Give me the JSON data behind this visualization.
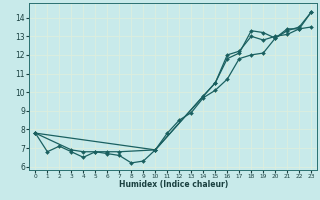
{
  "xlabel": "Humidex (Indice chaleur)",
  "xlim": [
    -0.5,
    23.5
  ],
  "ylim": [
    5.8,
    14.8
  ],
  "yticks": [
    6,
    7,
    8,
    9,
    10,
    11,
    12,
    13,
    14
  ],
  "xticks": [
    0,
    1,
    2,
    3,
    4,
    5,
    6,
    7,
    8,
    9,
    10,
    11,
    12,
    13,
    14,
    15,
    16,
    17,
    18,
    19,
    20,
    21,
    22,
    23
  ],
  "bg_color": "#c8eaea",
  "grid_color": "#e8f8f8",
  "line_color": "#1a6060",
  "series1": [
    [
      0,
      7.8
    ],
    [
      1,
      6.8
    ],
    [
      2,
      7.1
    ],
    [
      3,
      6.8
    ],
    [
      4,
      6.5
    ],
    [
      5,
      6.8
    ],
    [
      6,
      6.7
    ],
    [
      7,
      6.6
    ],
    [
      8,
      6.2
    ],
    [
      9,
      6.3
    ],
    [
      10,
      6.9
    ],
    [
      11,
      7.8
    ],
    [
      12,
      8.5
    ],
    [
      13,
      8.9
    ],
    [
      14,
      9.7
    ],
    [
      15,
      10.1
    ],
    [
      16,
      10.7
    ],
    [
      17,
      11.8
    ],
    [
      18,
      12.0
    ],
    [
      19,
      12.1
    ],
    [
      20,
      12.9
    ],
    [
      21,
      13.3
    ],
    [
      22,
      13.5
    ],
    [
      23,
      14.3
    ]
  ],
  "series2": [
    [
      0,
      7.8
    ],
    [
      3,
      6.9
    ],
    [
      4,
      6.8
    ],
    [
      5,
      6.8
    ],
    [
      6,
      6.8
    ],
    [
      7,
      6.8
    ],
    [
      10,
      6.9
    ],
    [
      14,
      9.8
    ],
    [
      15,
      10.5
    ],
    [
      16,
      11.8
    ],
    [
      17,
      12.1
    ],
    [
      18,
      13.3
    ],
    [
      19,
      13.2
    ],
    [
      20,
      12.9
    ],
    [
      21,
      13.4
    ],
    [
      22,
      13.4
    ],
    [
      23,
      13.5
    ]
  ],
  "series3": [
    [
      0,
      7.8
    ],
    [
      10,
      6.9
    ],
    [
      15,
      10.5
    ],
    [
      16,
      12.0
    ],
    [
      17,
      12.2
    ],
    [
      18,
      13.0
    ],
    [
      19,
      12.8
    ],
    [
      20,
      13.0
    ],
    [
      21,
      13.1
    ],
    [
      22,
      13.4
    ],
    [
      23,
      14.3
    ]
  ]
}
